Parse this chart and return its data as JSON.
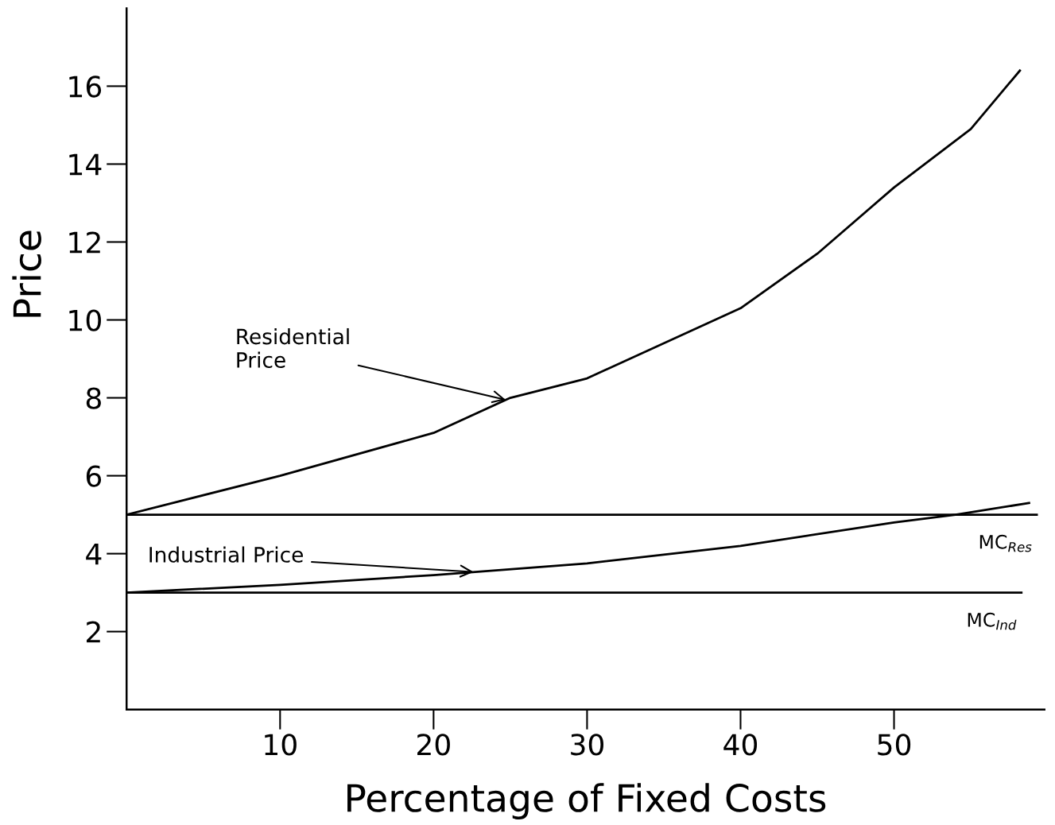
{
  "chart_data": {
    "type": "line",
    "xlabel": "Percentage of Fixed Costs",
    "ylabel": "Price",
    "series": [
      {
        "name": "MC$_{Res}$",
        "color": "#000000",
        "x": [
          0,
          59.3
        ],
        "values": [
          5,
          5
        ]
      },
      {
        "name": "MC$_{Ind}$",
        "color": "#000000",
        "x": [
          0,
          58.3
        ],
        "values": [
          3,
          3
        ]
      },
      {
        "color": "#000000",
        "x": [
          0,
          10,
          20,
          25,
          30,
          40,
          45,
          50,
          55,
          58.2
        ],
        "values": [
          5,
          6.0,
          7.1,
          8.0,
          8.5,
          10.3,
          11.7,
          13.4,
          14.9,
          16.4
        ]
      },
      {
        "color": "#000000",
        "x": [
          0,
          10,
          20,
          30,
          40,
          50,
          54,
          58.8
        ],
        "values": [
          3,
          3.2,
          3.45,
          3.75,
          4.2,
          4.8,
          5.0,
          5.3
        ]
      }
    ],
    "annotations": [
      {
        "text": "Residential\nPrice",
        "x": 24.7,
        "y": 7.95
      },
      {
        "text": "Industrial Price",
        "x": 22.6,
        "y": 3.53
      }
    ],
    "xlim": [
      0,
      59.8
    ],
    "ylim": [
      0,
      18
    ],
    "xticks": [
      10,
      20,
      30,
      40,
      50
    ],
    "yticks": [
      2,
      4,
      6,
      8,
      10,
      12,
      14,
      16
    ],
    "grid": false,
    "legend": false,
    "marker": "none",
    "line_style": "solid"
  }
}
